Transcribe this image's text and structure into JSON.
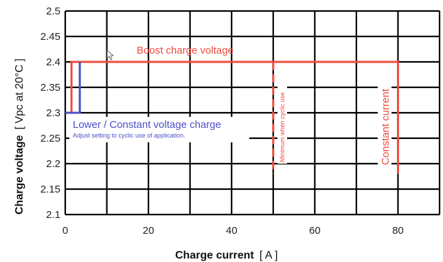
{
  "chart_data": {
    "type": "line",
    "xlabel": "Charge current",
    "xunit": "[ A ]",
    "ylabel": "Charge voltage",
    "yunit": "[ Vpc at 20°C ]",
    "xlim": [
      0,
      90
    ],
    "ylim": [
      2.1,
      2.5
    ],
    "x_ticks": [
      0,
      20,
      40,
      60,
      80
    ],
    "x_gridlines": [
      0,
      10,
      20,
      30,
      40,
      50,
      60,
      70,
      80,
      90
    ],
    "y_ticks": [
      "2.1",
      "2.15",
      "2.2",
      "2.25",
      "2.3",
      "2.35",
      "2.4",
      "2.45",
      "2.5"
    ],
    "grid": true,
    "colors": {
      "boost": "#f04a3c",
      "lower": "#4a4ec8",
      "grid": "#000000"
    },
    "series": [
      {
        "name": "Boost charge voltage",
        "style": "solid",
        "color": "#f04a3c",
        "x": [
          1.5,
          1.5,
          80,
          80
        ],
        "y": [
          2.3,
          2.4,
          2.4,
          2.18
        ]
      },
      {
        "name": "Lower / Constant voltage charge",
        "style": "solid",
        "color": "#4a4ec8",
        "x": [
          0,
          3.5,
          3.5
        ],
        "y": [
          2.3,
          2.3,
          2.4
        ]
      },
      {
        "name": "Minimum when cyclic use",
        "style": "dashed",
        "color": "#f04a3c",
        "x": [
          50,
          50
        ],
        "y": [
          2.4,
          2.18
        ]
      }
    ],
    "annotations": {
      "boost": "Boost charge voltage",
      "lower_title": "Lower / Constant voltage charge",
      "lower_sub": "Adjust setting to cyclic use of application.",
      "minimum": "Minimum when cyclic use",
      "constant": "Constant current"
    }
  }
}
